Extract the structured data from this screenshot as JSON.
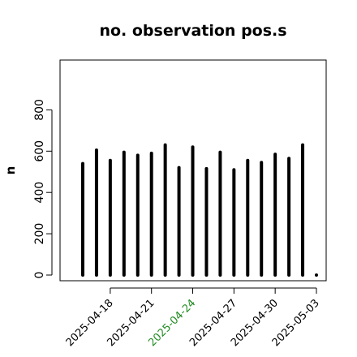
{
  "chart_data": {
    "type": "bar",
    "title": "no. observation pos.s",
    "xlabel": "",
    "ylabel": "n",
    "ylim": [
      0,
      1000
    ],
    "yticks": [
      0,
      200,
      400,
      600,
      800
    ],
    "grid": false,
    "legend": "none",
    "bar_color": "#000000",
    "x": [
      "2025-04-16",
      "2025-04-17",
      "2025-04-18",
      "2025-04-19",
      "2025-04-20",
      "2025-04-21",
      "2025-04-22",
      "2025-04-23",
      "2025-04-24",
      "2025-04-25",
      "2025-04-26",
      "2025-04-27",
      "2025-04-28",
      "2025-04-29",
      "2025-04-30",
      "2025-05-01",
      "2025-05-02",
      "2025-05-03"
    ],
    "values": [
      540,
      605,
      555,
      595,
      580,
      590,
      630,
      520,
      620,
      515,
      595,
      510,
      555,
      545,
      585,
      565,
      630,
      0
    ],
    "xtick_labels": [
      {
        "label": "2025-04-18",
        "index": 2,
        "color": "#000000"
      },
      {
        "label": "2025-04-21",
        "index": 5,
        "color": "#000000"
      },
      {
        "label": "2025-04-24",
        "index": 8,
        "color": "#228B22"
      },
      {
        "label": "2025-04-27",
        "index": 11,
        "color": "#000000"
      },
      {
        "label": "2025-04-30",
        "index": 14,
        "color": "#000000"
      },
      {
        "label": "2025-05-03",
        "index": 17,
        "color": "#000000"
      }
    ]
  }
}
